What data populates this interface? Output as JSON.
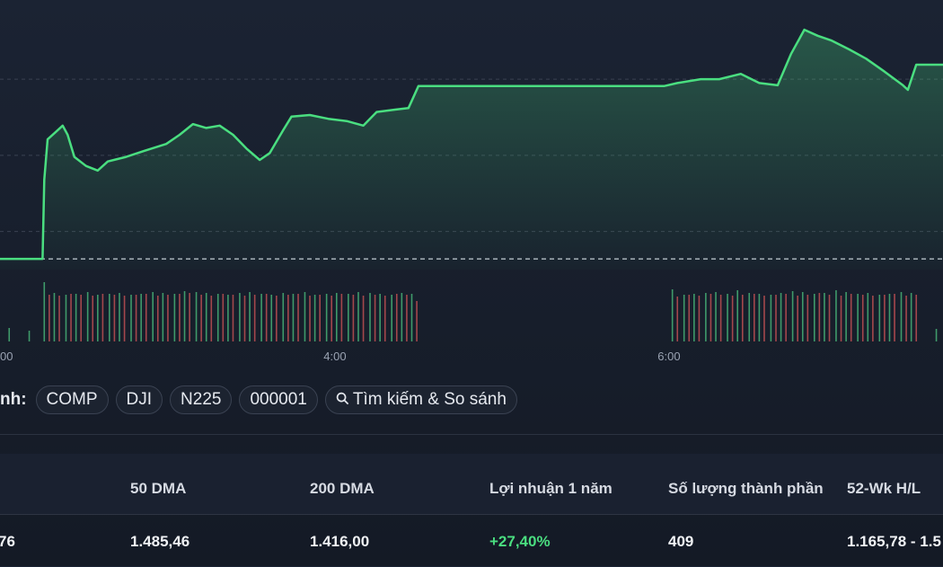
{
  "chart_data": {
    "type": "line",
    "color": "#4ade80",
    "x": [
      1.99,
      2.25,
      2.26,
      2.28,
      2.32,
      2.37,
      2.4,
      2.44,
      2.51,
      2.58,
      2.64,
      2.75,
      2.86,
      2.99,
      3.07,
      3.15,
      3.23,
      3.31,
      3.39,
      3.47,
      3.55,
      3.61,
      3.69,
      3.74,
      3.85,
      3.96,
      4.07,
      4.17,
      4.25,
      4.36,
      4.44,
      4.5,
      5.97,
      6.05,
      6.19,
      6.3,
      6.43,
      6.54,
      6.65,
      6.73,
      6.81,
      6.89,
      6.97,
      7.08,
      7.18,
      7.29,
      7.4,
      7.43,
      7.48,
      7.64
    ],
    "values": [
      1496.4,
      1496.4,
      1506.8,
      1512.1,
      1512.9,
      1513.9,
      1512.7,
      1509.8,
      1508.6,
      1508.0,
      1509.2,
      1509.8,
      1510.6,
      1511.5,
      1512.7,
      1514.1,
      1513.6,
      1513.9,
      1512.7,
      1510.9,
      1509.4,
      1510.3,
      1513.3,
      1515.1,
      1515.3,
      1514.8,
      1514.5,
      1513.9,
      1515.7,
      1516.0,
      1516.2,
      1519.1,
      1519.1,
      1519.5,
      1520.0,
      1520.0,
      1520.7,
      1519.5,
      1519.2,
      1523.3,
      1526.5,
      1525.7,
      1525.1,
      1523.9,
      1522.7,
      1521.0,
      1519.2,
      1518.6,
      1521.9,
      1521.9
    ],
    "xlim": [
      1.995,
      7.64
    ],
    "xticks": [
      {
        "value": 2,
        "label": "00"
      },
      {
        "value": 4,
        "label": "4:00"
      },
      {
        "value": 6,
        "label": "6:00"
      }
    ],
    "ylim": [
      1495,
      1530.4
    ],
    "yticks": [
      1500,
      1510,
      1520
    ],
    "reference_line": 1496.4,
    "volume": {
      "ylim": [
        0,
        70
      ],
      "series": [
        {
          "color": "#3f9a6a",
          "x": [
            1.99,
            2.05,
            2.17,
            2.26,
            2.32,
            2.39,
            2.45,
            2.52,
            2.58,
            2.65,
            2.71,
            2.78,
            2.84,
            2.91,
            2.97,
            3.04,
            3.1,
            3.17,
            3.23,
            3.3,
            3.36,
            3.43,
            3.49,
            3.56,
            3.62,
            3.69,
            3.75,
            3.82,
            3.88,
            3.95,
            4.01,
            4.08,
            4.14,
            4.21,
            4.27,
            4.34,
            4.4,
            4.46,
            6.02,
            6.09,
            6.15,
            6.22,
            6.28,
            6.35,
            6.41,
            6.48,
            6.54,
            6.61,
            6.67,
            6.74,
            6.8,
            6.87,
            6.93,
            7.0,
            7.06,
            7.13,
            7.19,
            7.26,
            7.32,
            7.39,
            7.45,
            7.6
          ],
          "values": [
            20,
            15,
            12,
            66,
            54,
            52,
            53,
            55,
            52,
            53,
            54,
            52,
            53,
            55,
            54,
            53,
            56,
            55,
            54,
            53,
            52,
            54,
            55,
            53,
            52,
            54,
            53,
            55,
            52,
            53,
            54,
            53,
            55,
            54,
            53,
            52,
            54,
            53,
            58,
            52,
            53,
            54,
            55,
            53,
            57,
            54,
            53,
            52,
            54,
            56,
            55,
            53,
            54,
            57,
            55,
            53,
            54,
            52,
            53,
            55,
            54,
            14
          ]
        },
        {
          "color": "#a4474c",
          "x": [
            2.29,
            2.35,
            2.42,
            2.48,
            2.55,
            2.61,
            2.68,
            2.74,
            2.81,
            2.87,
            2.94,
            3.0,
            3.07,
            3.13,
            3.2,
            3.26,
            3.33,
            3.39,
            3.46,
            3.52,
            3.59,
            3.65,
            3.72,
            3.78,
            3.85,
            3.91,
            3.98,
            4.04,
            4.11,
            4.17,
            4.24,
            4.3,
            4.37,
            4.43,
            4.49,
            6.05,
            6.12,
            6.18,
            6.25,
            6.31,
            6.38,
            6.44,
            6.51,
            6.57,
            6.64,
            6.7,
            6.77,
            6.83,
            6.9,
            6.96,
            7.03,
            7.09,
            7.16,
            7.22,
            7.29,
            7.35,
            7.42,
            7.48
          ],
          "values": [
            52,
            51,
            53,
            52,
            51,
            53,
            52,
            51,
            52,
            53,
            51,
            52,
            53,
            54,
            52,
            51,
            53,
            52,
            51,
            52,
            53,
            51,
            52,
            53,
            51,
            52,
            51,
            53,
            52,
            51,
            52,
            51,
            53,
            52,
            45,
            50,
            52,
            51,
            53,
            52,
            51,
            52,
            53,
            51,
            52,
            53,
            51,
            52,
            54,
            52,
            51,
            53,
            52,
            51,
            52,
            53,
            51,
            52
          ]
        }
      ]
    }
  },
  "compare": {
    "label": "nh:",
    "items": [
      "COMP",
      "DJI",
      "N225",
      "000001",
      "Tìm kiếm & So sánh"
    ]
  },
  "table": {
    "columns": [
      {
        "value": "76"
      },
      {
        "header": "50 DMA",
        "value": "1.485,46"
      },
      {
        "header": "200 DMA",
        "value": "1.416,00"
      },
      {
        "header": "Lợi nhuận 1 năm",
        "value": "+27,40%"
      },
      {
        "header": "Số lượng thành phần",
        "value": "409"
      },
      {
        "header": "52-Wk H/L",
        "value": "1.165,78 - 1.5"
      }
    ]
  }
}
